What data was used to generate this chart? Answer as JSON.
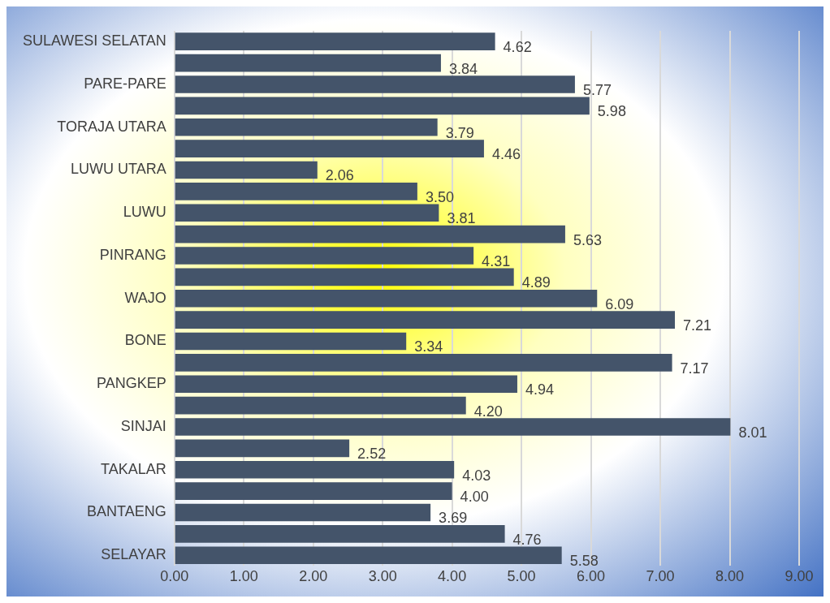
{
  "chart_data": {
    "type": "bar",
    "orientation": "horizontal",
    "categories": [
      "SULAWESI SELATAN",
      null,
      "PARE-PARE",
      null,
      "TORAJA UTARA",
      null,
      "LUWU UTARA",
      null,
      "LUWU",
      null,
      "PINRANG",
      null,
      "WAJO",
      null,
      "BONE",
      null,
      "PANGKEP",
      null,
      "SINJAI",
      null,
      "TAKALAR",
      null,
      "BANTAENG",
      null,
      "SELAYAR"
    ],
    "values": [
      4.62,
      3.84,
      5.77,
      5.98,
      3.79,
      4.46,
      2.06,
      3.5,
      3.81,
      5.63,
      4.31,
      4.89,
      6.09,
      7.21,
      3.34,
      7.17,
      4.94,
      4.2,
      8.01,
      2.52,
      4.03,
      4.0,
      3.69,
      4.76,
      5.58
    ],
    "value_labels": [
      "4.62",
      "3.84",
      "5.77",
      "5.98",
      "3.79",
      "4.46",
      "2.06",
      "3.50",
      "3.81",
      "5.63",
      "4.31",
      "4.89",
      "6.09",
      "7.21",
      "3.34",
      "7.17",
      "4.94",
      "4.20",
      "8.01",
      "2.52",
      "4.03",
      "4.00",
      "3.69",
      "4.76",
      "5.58"
    ],
    "color": "#44546a",
    "xlim": [
      0,
      9
    ],
    "xticks": [
      {
        "value": 0,
        "label": "0.00"
      },
      {
        "value": 1,
        "label": "1.00"
      },
      {
        "value": 2,
        "label": "2.00"
      },
      {
        "value": 3,
        "label": "3.00"
      },
      {
        "value": 4,
        "label": "4.00"
      },
      {
        "value": 5,
        "label": "5.00"
      },
      {
        "value": 6,
        "label": "6.00"
      },
      {
        "value": 7,
        "label": "7.00"
      },
      {
        "value": 8,
        "label": "8.00"
      },
      {
        "value": 9,
        "label": "9.00"
      }
    ],
    "grid": "x",
    "legend": false
  }
}
